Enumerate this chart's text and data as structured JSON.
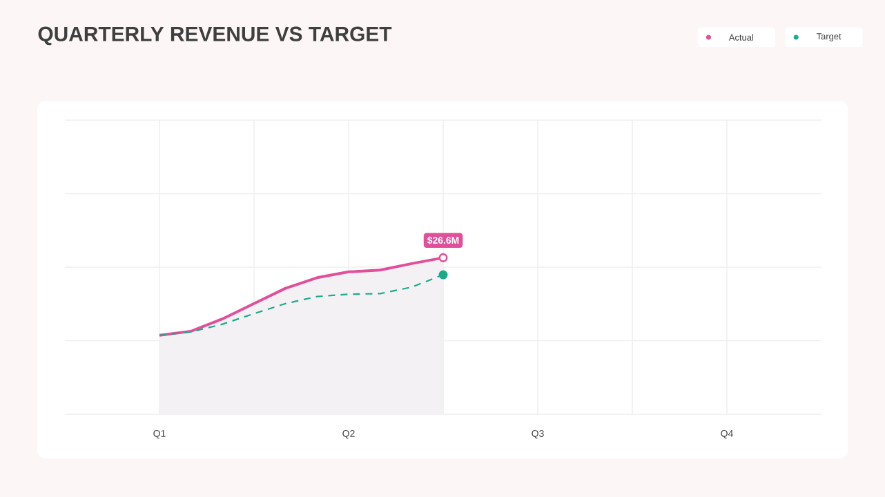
{
  "chart_data": {
    "type": "line",
    "title": "QUARTERLY REVENUE VS TARGET",
    "categories": [
      "Q1",
      null,
      null,
      null,
      null,
      null,
      "Q2",
      null,
      null,
      null,
      null,
      null,
      "Q3",
      null,
      null,
      null,
      null,
      null,
      "Q4"
    ],
    "ylim": [
      0,
      50
    ],
    "yticks": [
      {
        "value": 0,
        "label": null
      },
      {
        "value": 12.5,
        "label": null
      },
      {
        "value": 25,
        "label": null
      },
      {
        "value": 37.5,
        "label": null
      },
      {
        "value": 50,
        "label": null
      }
    ],
    "tick_labels": "x",
    "grid": true,
    "legend": "top right",
    "series": [
      {
        "name": "Actual",
        "type": "area",
        "color": "#E0509A",
        "values": [
          13.4,
          14.1,
          16.2,
          18.8,
          21.4,
          23.2,
          24.2,
          24.5,
          25.6,
          26.6,
          null,
          null,
          null,
          null,
          null,
          null,
          null,
          null,
          null
        ],
        "value_labels": [
          null,
          null,
          null,
          null,
          null,
          null,
          null,
          null,
          null,
          "$26.6M",
          null,
          null,
          null,
          null,
          null,
          null,
          null,
          null,
          null
        ]
      },
      {
        "name": "Target",
        "color": "#1AAB8A",
        "line_style": "dashed",
        "values": [
          13.4,
          14.0,
          15.3,
          17.1,
          18.8,
          20.0,
          20.4,
          20.5,
          21.6,
          23.7,
          null,
          null,
          null,
          null,
          null,
          null,
          null,
          null,
          null
        ]
      }
    ]
  }
}
